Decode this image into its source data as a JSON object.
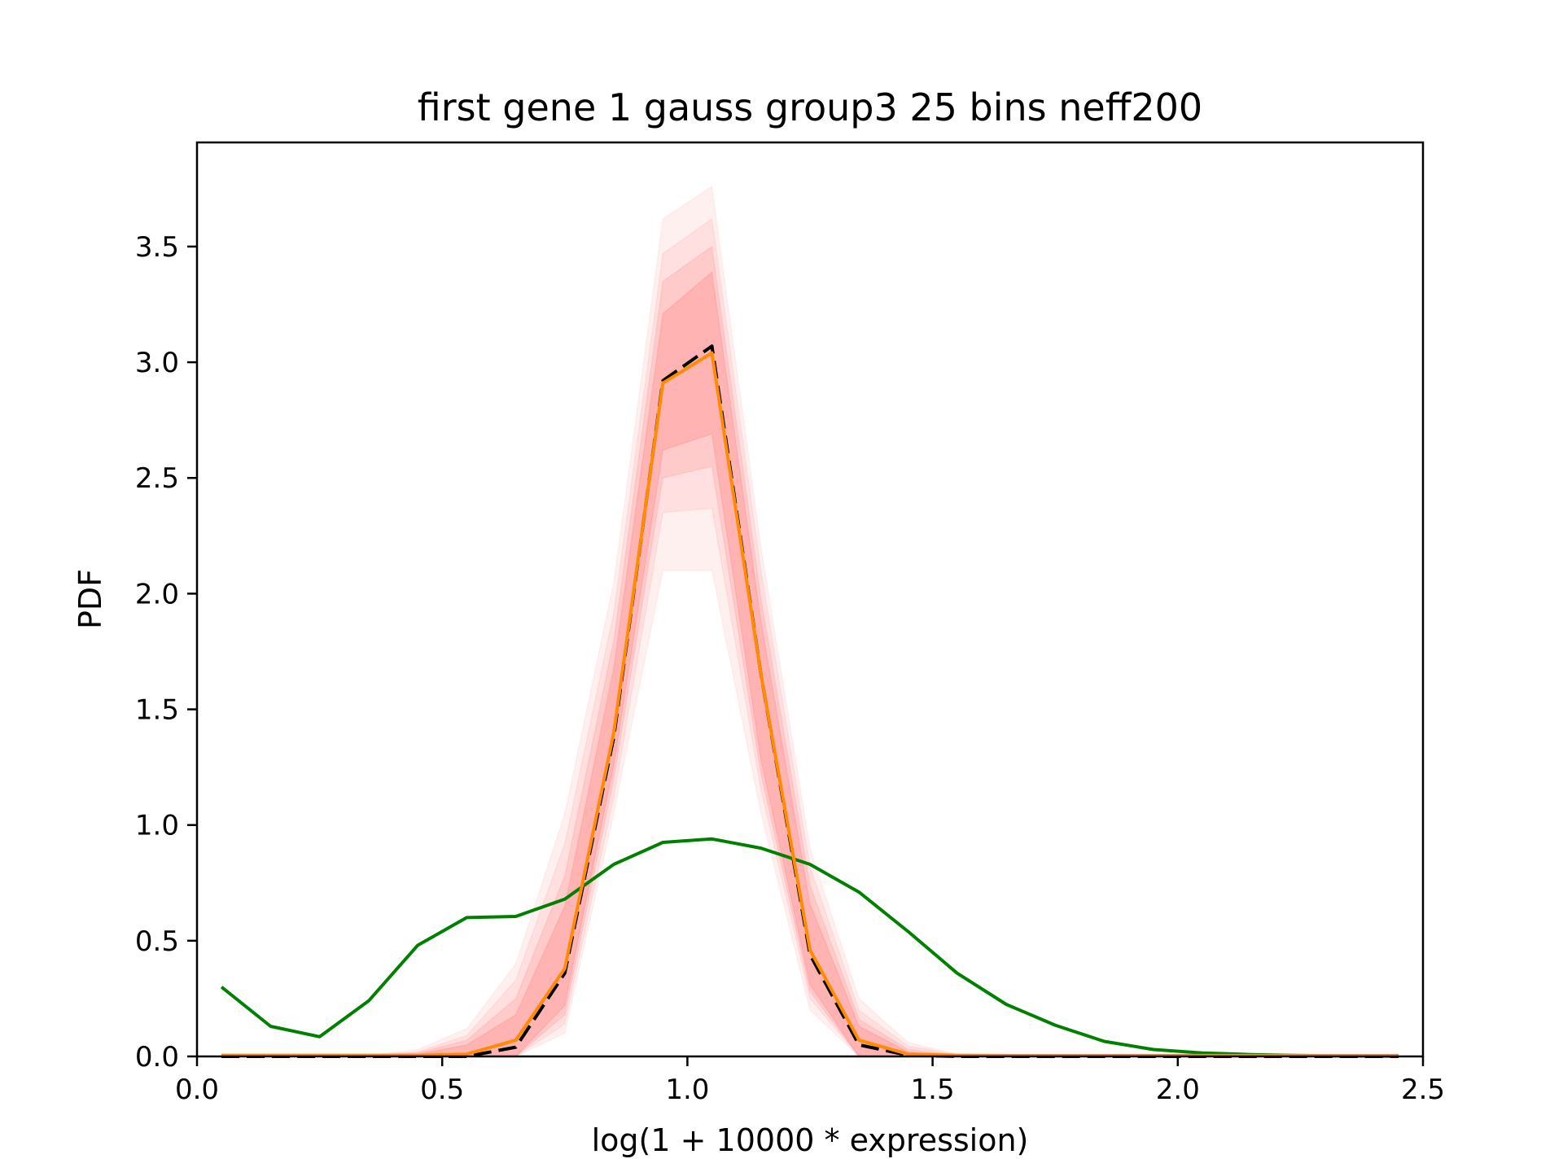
{
  "chart_data": {
    "type": "line",
    "title": "first gene 1 gauss group3 25 bins neff200",
    "xlabel": "log(1 + 10000 * expression)",
    "ylabel": "PDF",
    "xlim": [
      0.0,
      2.5
    ],
    "ylim": [
      0.0,
      3.95
    ],
    "xticks": [
      "0.0",
      "0.5",
      "1.0",
      "1.5",
      "2.0",
      "2.5"
    ],
    "yticks": [
      "0.0",
      "0.5",
      "1.0",
      "1.5",
      "2.0",
      "2.5",
      "3.0",
      "3.5"
    ],
    "grid": false,
    "x": [
      0.05,
      0.15,
      0.25,
      0.35,
      0.45,
      0.55,
      0.65,
      0.75,
      0.85,
      0.95,
      1.05,
      1.15,
      1.25,
      1.35,
      1.45,
      1.55,
      1.65,
      1.75,
      1.85,
      1.95,
      2.05,
      2.15,
      2.25,
      2.35,
      2.45
    ],
    "bands": [
      {
        "color": "#ff0000",
        "opacity": 0.06,
        "lower": [
          0,
          0,
          0,
          0,
          0,
          0,
          0,
          0.1,
          1.05,
          2.1,
          2.1,
          1.05,
          0.2,
          0,
          0,
          0,
          0,
          0,
          0,
          0,
          0,
          0,
          0,
          0,
          0
        ],
        "upper": [
          0.005,
          0.005,
          0.005,
          0.005,
          0.03,
          0.12,
          0.4,
          1.05,
          2.05,
          3.62,
          3.76,
          2.2,
          0.9,
          0.25,
          0.06,
          0.01,
          0.005,
          0.005,
          0.005,
          0.005,
          0.005,
          0.005,
          0.005,
          0.005,
          0.005
        ]
      },
      {
        "color": "#ff0000",
        "opacity": 0.07,
        "lower": [
          0,
          0,
          0,
          0,
          0,
          0,
          0,
          0.14,
          1.12,
          2.35,
          2.37,
          1.15,
          0.25,
          0,
          0,
          0,
          0,
          0,
          0,
          0,
          0,
          0,
          0,
          0,
          0
        ],
        "upper": [
          0.005,
          0.005,
          0.005,
          0.005,
          0.02,
          0.09,
          0.33,
          0.92,
          1.92,
          3.47,
          3.62,
          2.1,
          0.82,
          0.2,
          0.045,
          0.008,
          0.004,
          0.004,
          0.004,
          0.004,
          0.004,
          0.004,
          0.004,
          0.004,
          0.004
        ]
      },
      {
        "color": "#ff0000",
        "opacity": 0.09,
        "lower": [
          0,
          0,
          0,
          0,
          0,
          0,
          0,
          0.18,
          1.2,
          2.5,
          2.55,
          1.22,
          0.28,
          0,
          0,
          0,
          0,
          0,
          0,
          0,
          0,
          0,
          0,
          0,
          0
        ],
        "upper": [
          0.004,
          0.004,
          0.004,
          0.004,
          0.015,
          0.07,
          0.25,
          0.78,
          1.8,
          3.35,
          3.5,
          1.98,
          0.74,
          0.16,
          0.03,
          0.006,
          0.003,
          0.003,
          0.003,
          0.003,
          0.003,
          0.003,
          0.003,
          0.003,
          0.003
        ]
      },
      {
        "color": "#ff0000",
        "opacity": 0.11,
        "lower": [
          0,
          0,
          0,
          0,
          0,
          0,
          0,
          0.22,
          1.26,
          2.62,
          2.69,
          1.28,
          0.31,
          0,
          0,
          0,
          0,
          0,
          0,
          0,
          0,
          0,
          0,
          0,
          0
        ],
        "upper": [
          0.004,
          0.004,
          0.004,
          0.004,
          0.01,
          0.05,
          0.18,
          0.65,
          1.68,
          3.21,
          3.39,
          1.88,
          0.66,
          0.13,
          0.02,
          0.004,
          0.002,
          0.002,
          0.002,
          0.002,
          0.002,
          0.002,
          0.002,
          0.002,
          0.002
        ]
      }
    ],
    "series": [
      {
        "color": "#008000",
        "style": "solid",
        "values": [
          0.3,
          0.13,
          0.085,
          0.24,
          0.48,
          0.6,
          0.605,
          0.68,
          0.83,
          0.925,
          0.94,
          0.9,
          0.83,
          0.71,
          0.54,
          0.36,
          0.225,
          0.135,
          0.065,
          0.03,
          0.015,
          0.008,
          0.004,
          0.002,
          0.001
        ]
      },
      {
        "color": "#000000",
        "style": "dashed",
        "values": [
          0,
          0,
          0,
          0,
          0,
          0,
          0.04,
          0.36,
          1.38,
          2.92,
          3.07,
          1.65,
          0.44,
          0.05,
          0.005,
          0,
          0,
          0,
          0,
          0,
          0,
          0,
          0,
          0,
          0
        ]
      },
      {
        "color": "#ff8c00",
        "style": "solid",
        "values": [
          0.005,
          0.005,
          0.005,
          0.005,
          0.005,
          0.01,
          0.07,
          0.38,
          1.4,
          2.91,
          3.04,
          1.65,
          0.46,
          0.07,
          0.01,
          0.005,
          0.004,
          0.004,
          0.004,
          0.004,
          0.004,
          0.004,
          0.004,
          0.004,
          0.004
        ]
      }
    ]
  }
}
